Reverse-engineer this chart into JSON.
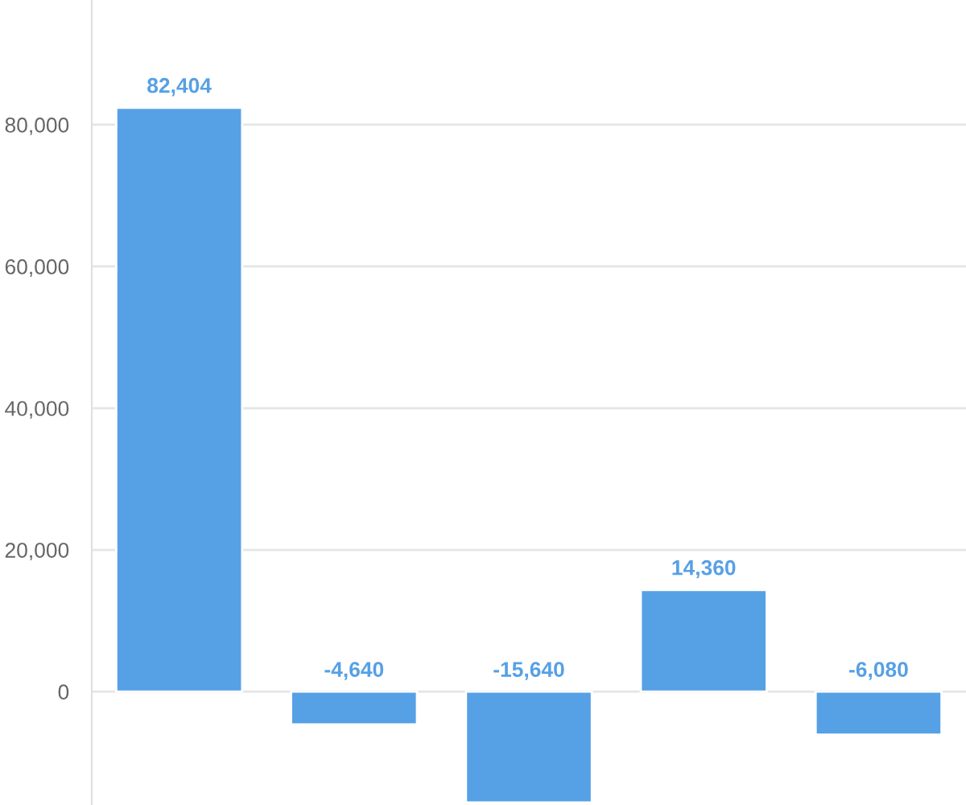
{
  "chart_data": {
    "type": "bar",
    "categories": [
      null,
      null,
      null,
      null,
      null
    ],
    "series": [
      {
        "color": "#56a0e5",
        "values": [
          82404,
          -4640,
          -15640,
          14360,
          -6080
        ],
        "value_labels": [
          "82,404",
          "-4,640",
          "-15,640",
          "14,360",
          "-6,080"
        ]
      }
    ],
    "ylim": [
      -16000,
      97600
    ],
    "yticks": [
      {
        "value": 0,
        "label": "0"
      },
      {
        "value": 20000,
        "label": "20,000"
      },
      {
        "value": 40000,
        "label": "40,000"
      },
      {
        "value": 60000,
        "label": "60,000"
      },
      {
        "value": 80000,
        "label": "80,000"
      }
    ],
    "grid": "y",
    "legend": false
  }
}
